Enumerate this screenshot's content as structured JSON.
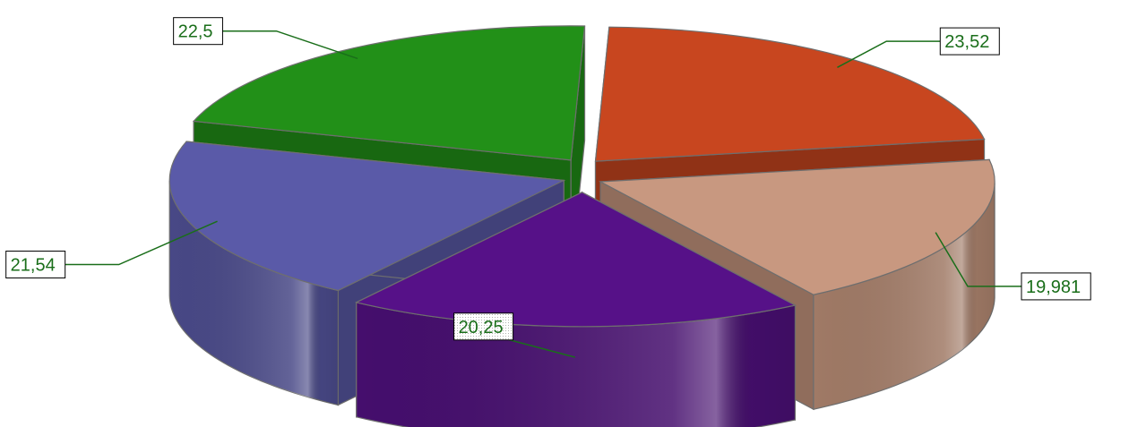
{
  "chart_data": {
    "type": "pie",
    "variant": "3d-exploded",
    "title": "",
    "slices": [
      {
        "label": "23,52",
        "value": 23.52,
        "color": "#c8461f"
      },
      {
        "label": "19,981",
        "value": 19.981,
        "color": "#c89880"
      },
      {
        "label": "20,25",
        "value": 20.25,
        "color": "#561188"
      },
      {
        "label": "21,54",
        "value": 21.54,
        "color": "#5a5aa8"
      },
      {
        "label": "22,5",
        "value": 22.5,
        "color": "#229018"
      }
    ],
    "data_label_color": "#1a6e1a",
    "legend": "none"
  }
}
